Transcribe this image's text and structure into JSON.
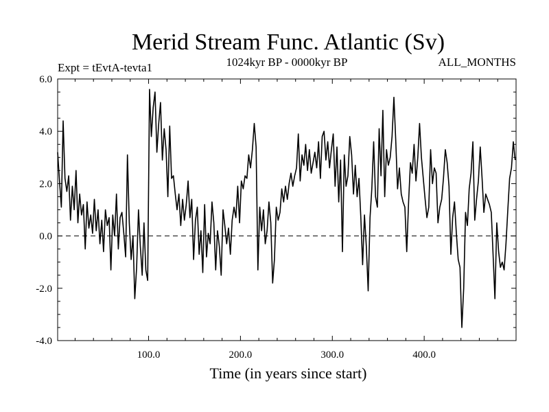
{
  "chart_data": {
    "type": "line",
    "title": "Merid Stream Func. Atlantic (Sv)",
    "subtitle_left": "Expt = tEvtA-tevta1",
    "subtitle_center": "1024kyr BP - 0000kyr BP",
    "subtitle_right": "ALL_MONTHS",
    "xlabel": "Time (in years since start)",
    "ylabel": "",
    "xlim": [
      1,
      500
    ],
    "ylim": [
      -4.0,
      6.0
    ],
    "xticks": [
      100,
      200,
      300,
      400
    ],
    "xtick_labels": [
      "100.0",
      "200.0",
      "300.0",
      "400.0"
    ],
    "yticks": [
      -4,
      -2,
      0,
      2,
      4,
      6
    ],
    "ytick_labels": [
      "-4.0",
      "-2.0",
      "0.0",
      "2.0",
      "4.0",
      "6.0"
    ],
    "grid": false,
    "reference_line": {
      "y": 0.0,
      "style": "dashed"
    },
    "series": [
      {
        "name": "Merid Stream Func. Atlantic",
        "x_start": 1,
        "x_step": 2,
        "values": [
          3.2,
          2.1,
          1.1,
          4.4,
          2.2,
          1.7,
          2.3,
          0.6,
          1.9,
          1.0,
          2.5,
          0.5,
          1.6,
          0.8,
          1.2,
          -0.5,
          1.3,
          0.3,
          0.8,
          0.1,
          1.4,
          0.2,
          1.0,
          -0.3,
          0.6,
          -0.6,
          1.0,
          0.4,
          0.7,
          -1.3,
          0.8,
          0.0,
          1.6,
          -0.5,
          0.7,
          0.9,
          0.1,
          -0.8,
          3.1,
          0.5,
          -0.9,
          0.0,
          -2.4,
          -1.2,
          1.0,
          -0.4,
          -1.5,
          0.5,
          -1.3,
          -1.7,
          5.6,
          3.8,
          4.9,
          5.5,
          3.2,
          4.3,
          5.1,
          2.9,
          4.1,
          3.3,
          1.5,
          4.2,
          2.2,
          2.3,
          1.6,
          1.0,
          1.6,
          0.4,
          1.4,
          0.6,
          1.2,
          2.1,
          0.7,
          1.4,
          -0.9,
          0.6,
          1.1,
          -0.7,
          0.2,
          -1.4,
          1.2,
          -0.8,
          0.1,
          -0.3,
          1.3,
          0.5,
          -1.3,
          0.2,
          -0.4,
          -1.5,
          1.0,
          0.4,
          -0.3,
          0.3,
          -0.7,
          0.6,
          1.1,
          0.7,
          1.9,
          0.5,
          2.1,
          1.8,
          2.3,
          2.2,
          3.1,
          2.6,
          3.3,
          4.3,
          3.4,
          -1.3,
          1.1,
          0.2,
          1.0,
          -0.3,
          0.2,
          1.3,
          0.5,
          -1.8,
          -0.9,
          1.1,
          0.6,
          0.9,
          1.8,
          1.3,
          1.9,
          1.4,
          2.0,
          2.4,
          1.9,
          2.3,
          2.6,
          3.9,
          2.1,
          3.1,
          2.7,
          3.5,
          2.5,
          3.3,
          2.4,
          2.8,
          3.2,
          2.6,
          3.6,
          2.2,
          3.8,
          4.0,
          2.9,
          3.6,
          2.6,
          3.3,
          3.9,
          1.9,
          3.4,
          1.3,
          2.9,
          -0.6,
          3.1,
          1.9,
          2.3,
          3.8,
          3.1,
          1.6,
          2.7,
          1.5,
          2.2,
          0.7,
          -1.1,
          0.8,
          -0.4,
          -2.1,
          0.7,
          1.8,
          3.6,
          1.5,
          1.1,
          4.1,
          2.3,
          4.8,
          1.5,
          3.3,
          2.7,
          3.0,
          3.8,
          5.3,
          3.7,
          1.8,
          2.6,
          1.6,
          1.3,
          1.1,
          -0.6,
          1.3,
          2.8,
          2.4,
          3.5,
          2.1,
          3.0,
          4.3,
          3.0,
          2.2,
          1.4,
          0.7,
          1.1,
          3.3,
          2.0,
          2.6,
          2.4,
          0.5,
          1.1,
          1.4,
          2.2,
          3.3,
          2.8,
          1.9,
          -0.7,
          0.7,
          1.3,
          0.1,
          -0.9,
          -1.2,
          -3.5,
          -2.0,
          0.9,
          0.4,
          1.8,
          2.4,
          3.6,
          0.6,
          1.4,
          2.1,
          3.4,
          2.2,
          0.9,
          1.6,
          1.4,
          1.2,
          0.9,
          -0.7,
          -2.4,
          0.5,
          -0.6,
          -1.2,
          -1.0,
          -1.3,
          -0.3,
          1.0,
          2.2,
          2.6,
          3.6,
          2.9
        ]
      }
    ]
  }
}
